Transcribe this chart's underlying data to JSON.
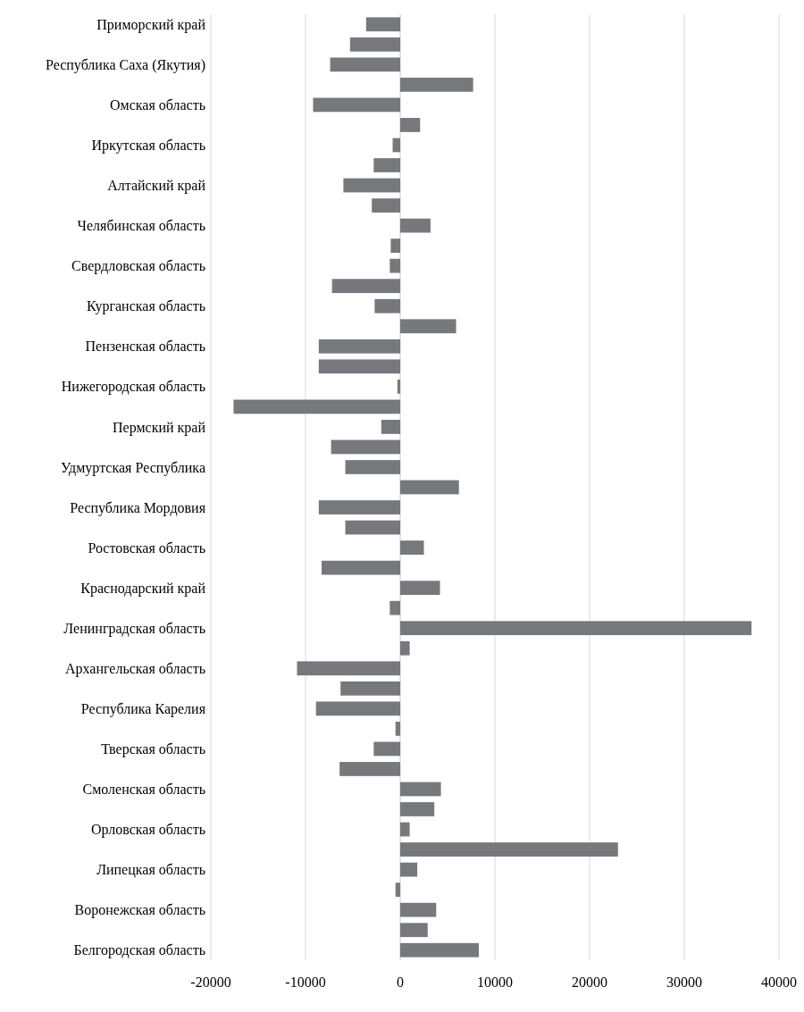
{
  "chart_data": {
    "type": "bar",
    "orientation": "horizontal",
    "categories": [
      "Приморский край",
      null,
      "Республика Саха (Якутия)",
      null,
      "Омская область",
      null,
      "Иркутская область",
      null,
      "Алтайский край",
      null,
      "Челябинская область",
      null,
      "Свердловская область",
      null,
      "Курганская область",
      null,
      "Пензенская область",
      null,
      "Нижегородская область",
      null,
      "Пермский край",
      null,
      "Удмуртская Республика",
      null,
      "Республика Мордовия",
      null,
      "Ростовская область",
      null,
      "Краснодарский край",
      null,
      "Ленинградская область",
      null,
      "Архангельская область",
      null,
      "Республика Карелия",
      null,
      "Тверская область",
      null,
      "Смоленская область",
      null,
      "Орловская область",
      null,
      "Липецкая область",
      null,
      "Воронежская область",
      null,
      "Белгородская область"
    ],
    "values": [
      -3600,
      -5300,
      -7400,
      7700,
      -9200,
      2100,
      -800,
      -2800,
      -6000,
      -3000,
      3200,
      -1000,
      -1100,
      -7200,
      -2700,
      5900,
      -8600,
      -8600,
      -300,
      -17600,
      -2000,
      -7300,
      -5800,
      6200,
      -8600,
      -5800,
      2500,
      -8300,
      4200,
      -1100,
      37100,
      1000,
      -10900,
      -6300,
      -8900,
      -500,
      -2800,
      -6400,
      4300,
      3600,
      1000,
      23000,
      1800,
      -500,
      3800,
      2900,
      8300
    ],
    "color": "#77787b",
    "xlim": [
      -20000,
      40000
    ],
    "xticks": [
      -20000,
      -10000,
      0,
      10000,
      20000,
      30000,
      40000
    ],
    "grid": "x"
  }
}
